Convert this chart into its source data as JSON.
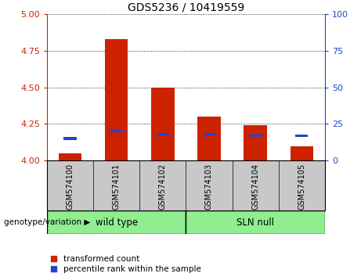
{
  "title": "GDS5236 / 10419559",
  "samples": [
    "GSM574100",
    "GSM574101",
    "GSM574102",
    "GSM574103",
    "GSM574104",
    "GSM574105"
  ],
  "red_values": [
    4.05,
    4.83,
    4.5,
    4.3,
    4.24,
    4.1
  ],
  "blue_percentiles": [
    15,
    20,
    18,
    18,
    17,
    17
  ],
  "ylim_left": [
    4.0,
    5.0
  ],
  "ylim_right": [
    0,
    100
  ],
  "yticks_left": [
    4.0,
    4.25,
    4.5,
    4.75,
    5.0
  ],
  "yticks_right": [
    0,
    25,
    50,
    75,
    100
  ],
  "bar_width": 0.5,
  "red_color": "#cc2200",
  "blue_color": "#2244cc",
  "green_color": "#90ee90",
  "gray_color": "#c8c8c8",
  "left_tick_color": "#cc2200",
  "right_tick_color": "#2244cc",
  "legend_red": "transformed count",
  "legend_blue": "percentile rank within the sample",
  "wt_label": "wild type",
  "sln_label": "SLN null",
  "group_label": "genotype/variation"
}
